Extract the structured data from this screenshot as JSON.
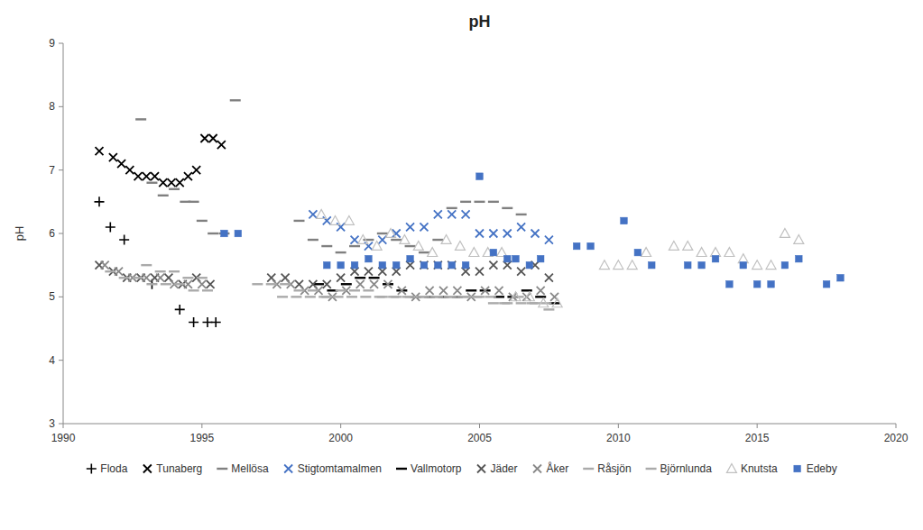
{
  "chart_data": {
    "type": "scatter",
    "title": "pH",
    "y_label": "pH",
    "xlim": [
      1990,
      2020
    ],
    "ylim": [
      3,
      9
    ],
    "xticks": [
      1990,
      1995,
      2000,
      2005,
      2010,
      2015,
      2020
    ],
    "yticks": [
      3,
      4,
      5,
      6,
      7,
      8,
      9
    ],
    "grid": false,
    "legend": "bottom",
    "series": [
      {
        "name": "Floda",
        "color": "#000000",
        "marker": "plus",
        "x": [
          1991.3,
          1991.7,
          1992.2,
          1993.2,
          1994.2,
          1994.7,
          1995.2,
          1995.5
        ],
        "values": [
          6.5,
          6.1,
          5.9,
          5.2,
          4.8,
          4.6,
          4.6,
          4.6
        ]
      },
      {
        "name": "Tunaberg",
        "color": "#000000",
        "marker": "x",
        "x": [
          1991.3,
          1991.8,
          1992.1,
          1992.4,
          1992.7,
          1993.0,
          1993.3,
          1993.6,
          1993.9,
          1994.2,
          1994.5,
          1994.8,
          1995.1,
          1995.4,
          1995.7
        ],
        "values": [
          7.3,
          7.2,
          7.1,
          7.0,
          6.9,
          6.9,
          6.9,
          6.8,
          6.8,
          6.8,
          6.9,
          7.0,
          7.5,
          7.5,
          7.4
        ]
      },
      {
        "name": "Mellösa",
        "color": "#808080",
        "marker": "dash",
        "x": [
          1992.8,
          1993.2,
          1993.6,
          1994.0,
          1994.4,
          1994.7,
          1995.0,
          1995.4,
          1995.8,
          1996.2,
          1998.5,
          1999.0,
          1999.5,
          2000.0,
          2000.5,
          2001.0,
          2001.5,
          2002.0,
          2002.5,
          2003.0,
          2003.5,
          2004.0,
          2004.5,
          2005.0,
          2005.5,
          2006.0,
          2006.5
        ],
        "values": [
          7.8,
          6.8,
          6.6,
          6.7,
          6.5,
          6.5,
          6.2,
          6.0,
          6.0,
          8.1,
          6.2,
          5.9,
          5.8,
          5.7,
          5.8,
          5.9,
          6.0,
          5.9,
          5.8,
          5.7,
          5.9,
          6.4,
          6.5,
          6.5,
          6.5,
          6.4,
          6.3
        ]
      },
      {
        "name": "Stigtomtamalmen",
        "color": "#4472c4",
        "marker": "x",
        "x": [
          1999.0,
          1999.5,
          2000.0,
          2000.5,
          2001.0,
          2001.5,
          2002.0,
          2002.5,
          2003.0,
          2003.5,
          2004.0,
          2004.5,
          2005.0,
          2005.5,
          2006.0,
          2006.5,
          2007.0,
          2007.5
        ],
        "values": [
          6.3,
          6.2,
          6.1,
          5.9,
          5.8,
          5.9,
          6.0,
          6.1,
          6.1,
          6.3,
          6.3,
          6.3,
          6.0,
          6.0,
          6.0,
          6.1,
          6.0,
          5.9
        ]
      },
      {
        "name": "Vallmotorp",
        "color": "#000000",
        "marker": "dash",
        "x": [
          1999.2,
          1999.7,
          2000.2,
          2000.7,
          2001.2,
          2001.7,
          2002.2,
          2002.7,
          2003.2,
          2003.7,
          2004.2,
          2004.7,
          2005.2,
          2005.7,
          2006.2,
          2006.7,
          2007.2,
          2007.7
        ],
        "values": [
          5.2,
          5.1,
          5.2,
          5.3,
          5.3,
          5.2,
          5.1,
          5.0,
          5.0,
          5.0,
          5.0,
          5.1,
          5.1,
          5.0,
          5.0,
          5.1,
          5.0,
          4.9
        ]
      },
      {
        "name": "Jäder",
        "color": "#555555",
        "marker": "x",
        "x": [
          1991.3,
          1991.8,
          1992.3,
          1992.8,
          1993.3,
          1993.8,
          1994.3,
          1994.8,
          1995.3,
          1997.5,
          1998.0,
          1998.5,
          1999.0,
          1999.5,
          2000.0,
          2000.5,
          2001.0,
          2001.5,
          2002.0,
          2002.5,
          2003.0,
          2003.5,
          2004.0,
          2004.5,
          2005.0,
          2005.5,
          2006.0,
          2006.5,
          2007.0,
          2007.5
        ],
        "values": [
          5.5,
          5.4,
          5.3,
          5.3,
          5.3,
          5.3,
          5.2,
          5.3,
          5.2,
          5.3,
          5.3,
          5.2,
          5.2,
          5.2,
          5.3,
          5.4,
          5.4,
          5.4,
          5.4,
          5.5,
          5.5,
          5.5,
          5.5,
          5.4,
          5.4,
          5.5,
          5.5,
          5.4,
          5.5,
          5.3
        ]
      },
      {
        "name": "Åker",
        "color": "#888888",
        "marker": "x",
        "x": [
          1991.5,
          1992.0,
          1992.5,
          1993.0,
          1993.5,
          1994.0,
          1994.5,
          1995.0,
          1997.7,
          1998.2,
          1998.7,
          1999.2,
          1999.7,
          2000.2,
          2000.7,
          2001.2,
          2001.7,
          2002.2,
          2002.7,
          2003.2,
          2003.7,
          2004.2,
          2004.7,
          2005.2,
          2005.7,
          2006.2,
          2006.7,
          2007.2,
          2007.7
        ],
        "values": [
          5.5,
          5.4,
          5.3,
          5.3,
          5.3,
          5.2,
          5.2,
          5.2,
          5.2,
          5.2,
          5.1,
          5.1,
          5.0,
          5.1,
          5.2,
          5.2,
          5.2,
          5.1,
          5.0,
          5.1,
          5.1,
          5.1,
          5.0,
          5.1,
          5.1,
          5.0,
          5.0,
          5.1,
          5.0
        ]
      },
      {
        "name": "Råsjön",
        "color": "#aaaaaa",
        "marker": "dash",
        "x": [
          1991.7,
          1992.2,
          1992.7,
          1993.2,
          1993.7,
          1994.2,
          1994.7,
          1995.2,
          1997.9,
          1998.4,
          1998.9,
          1999.4,
          1999.9,
          2000.4,
          2000.9,
          2001.4,
          2001.9,
          2002.4,
          2002.9,
          2003.4,
          2003.9,
          2004.4,
          2004.9,
          2005.4,
          2005.9,
          2006.4,
          2006.9,
          2007.4
        ],
        "values": [
          5.4,
          5.3,
          5.3,
          5.2,
          5.2,
          5.2,
          5.1,
          5.1,
          5.0,
          5.0,
          5.0,
          5.0,
          5.0,
          5.0,
          5.0,
          5.0,
          5.0,
          5.0,
          5.0,
          5.0,
          5.0,
          5.0,
          5.0,
          5.0,
          4.9,
          5.0,
          4.9,
          4.9
        ]
      },
      {
        "name": "Björnlunda",
        "color": "#aaaaaa",
        "marker": "dash",
        "x": [
          1993.0,
          1993.5,
          1994.0,
          1994.5,
          1995.0,
          1997.0,
          1997.5,
          1998.0,
          1998.5,
          1999.0,
          1999.5,
          2000.0,
          2000.5,
          2001.0,
          2001.5,
          2002.0,
          2002.5,
          2003.0,
          2003.5,
          2004.0,
          2004.5,
          2005.0,
          2005.5,
          2006.0,
          2006.5,
          2007.0,
          2007.5
        ],
        "values": [
          5.5,
          5.4,
          5.4,
          5.3,
          5.3,
          5.2,
          5.2,
          5.2,
          5.1,
          5.1,
          5.0,
          5.1,
          5.1,
          5.1,
          5.0,
          5.0,
          5.0,
          5.0,
          5.0,
          5.0,
          5.0,
          5.0,
          4.9,
          4.9,
          4.9,
          4.9,
          4.8
        ]
      },
      {
        "name": "Knutsta",
        "color": "#c0c0c0",
        "marker": "triangle-open",
        "x": [
          1999.3,
          1999.8,
          2000.3,
          2000.8,
          2001.3,
          2001.8,
          2002.3,
          2002.8,
          2003.3,
          2003.8,
          2004.3,
          2004.8,
          2005.3,
          2005.8,
          2006.3,
          2006.8,
          2007.3,
          2007.8,
          2009.5,
          2010.0,
          2010.5,
          2011.0,
          2012.0,
          2012.5,
          2013.0,
          2013.5,
          2014.0,
          2014.5,
          2015.0,
          2015.5,
          2016.0,
          2016.5
        ],
        "values": [
          6.3,
          6.2,
          6.2,
          5.9,
          5.8,
          6.0,
          5.9,
          5.8,
          5.7,
          5.9,
          5.8,
          5.7,
          5.7,
          5.7,
          5.0,
          5.0,
          4.9,
          4.9,
          5.5,
          5.5,
          5.5,
          5.7,
          5.8,
          5.8,
          5.7,
          5.7,
          5.7,
          5.6,
          5.5,
          5.5,
          6.0,
          5.9
        ]
      },
      {
        "name": "Edeby",
        "color": "#4472c4",
        "marker": "square",
        "x": [
          1995.8,
          1996.3,
          1999.5,
          2000.0,
          2000.5,
          2001.0,
          2001.5,
          2002.0,
          2002.5,
          2003.0,
          2003.5,
          2004.0,
          2004.5,
          2005.0,
          2005.5,
          2006.0,
          2006.3,
          2006.8,
          2007.2,
          2008.5,
          2009.0,
          2010.2,
          2010.7,
          2011.2,
          2012.5,
          2013.0,
          2013.5,
          2014.0,
          2014.5,
          2015.0,
          2015.5,
          2016.0,
          2016.5,
          2017.5,
          2018.0
        ],
        "values": [
          6.0,
          6.0,
          5.5,
          5.5,
          5.5,
          5.6,
          5.5,
          5.5,
          5.6,
          5.5,
          5.5,
          5.5,
          5.5,
          6.9,
          5.7,
          5.6,
          5.6,
          5.5,
          5.6,
          5.8,
          5.8,
          6.2,
          5.7,
          5.5,
          5.5,
          5.5,
          5.6,
          5.2,
          5.5,
          5.2,
          5.2,
          5.5,
          5.6,
          5.2,
          5.3
        ]
      }
    ]
  }
}
